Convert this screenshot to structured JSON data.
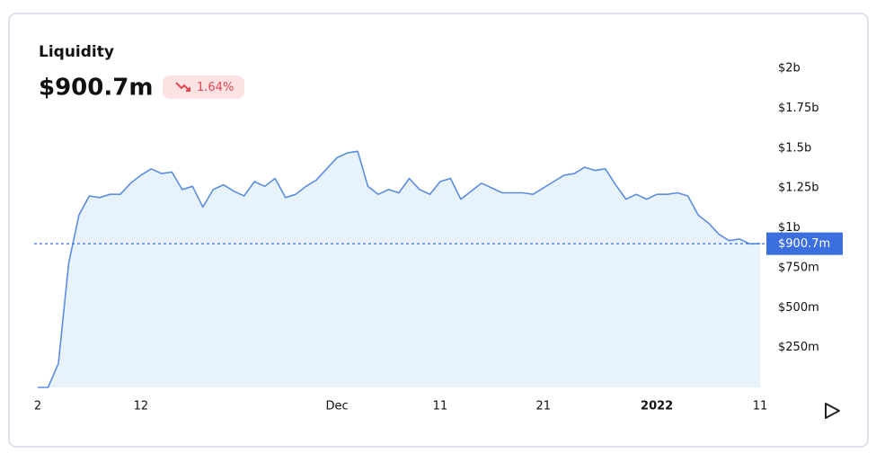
{
  "header": {
    "title": "Liquidity",
    "value": "$900.7m",
    "change": "1.64%"
  },
  "chart_data": {
    "type": "area",
    "categories": [
      "2",
      null,
      null,
      null,
      null,
      null,
      null,
      null,
      null,
      null,
      "12",
      null,
      null,
      null,
      null,
      null,
      null,
      null,
      null,
      null,
      null,
      null,
      null,
      null,
      null,
      null,
      null,
      null,
      null,
      "Dec",
      null,
      null,
      null,
      null,
      null,
      null,
      null,
      null,
      null,
      "11",
      null,
      null,
      null,
      null,
      null,
      null,
      null,
      null,
      null,
      "21",
      null,
      null,
      null,
      null,
      null,
      null,
      null,
      null,
      null,
      null,
      "2022",
      null,
      null,
      null,
      null,
      null,
      null,
      null,
      null,
      null,
      "11"
    ],
    "series": [
      {
        "name": "Liquidity",
        "color": "#5b8de0",
        "fill": "#e8f2fb",
        "values": [
          0,
          0,
          0.15,
          0.78,
          1.08,
          1.2,
          1.19,
          1.21,
          1.21,
          1.28,
          1.33,
          1.37,
          1.34,
          1.35,
          1.24,
          1.26,
          1.13,
          1.24,
          1.27,
          1.23,
          1.2,
          1.29,
          1.26,
          1.31,
          1.19,
          1.21,
          1.26,
          1.3,
          1.37,
          1.44,
          1.47,
          1.48,
          1.26,
          1.21,
          1.24,
          1.22,
          1.31,
          1.24,
          1.21,
          1.29,
          1.31,
          1.18,
          1.23,
          1.28,
          1.25,
          1.22,
          1.22,
          1.22,
          1.21,
          1.25,
          1.29,
          1.33,
          1.34,
          1.38,
          1.36,
          1.37,
          1.27,
          1.18,
          1.21,
          1.18,
          1.21,
          1.21,
          1.22,
          1.2,
          1.08,
          1.03,
          0.96,
          0.92,
          0.93,
          0.9,
          0.9007
        ]
      }
    ],
    "ylim": [
      0,
      2
    ],
    "yticks": [
      {
        "value": 0.25,
        "label": "$250m"
      },
      {
        "value": 0.5,
        "label": "$500m"
      },
      {
        "value": 0.75,
        "label": "$750m"
      },
      {
        "value": 1,
        "label": "$1b"
      },
      {
        "value": 1.25,
        "label": "$1.25b"
      },
      {
        "value": 1.5,
        "label": "$1.5b"
      },
      {
        "value": 1.75,
        "label": "$1.75b"
      },
      {
        "value": 2,
        "label": "$2b"
      }
    ],
    "bold_categories": [
      "2022"
    ],
    "marker_color": "#3b6fe0"
  }
}
